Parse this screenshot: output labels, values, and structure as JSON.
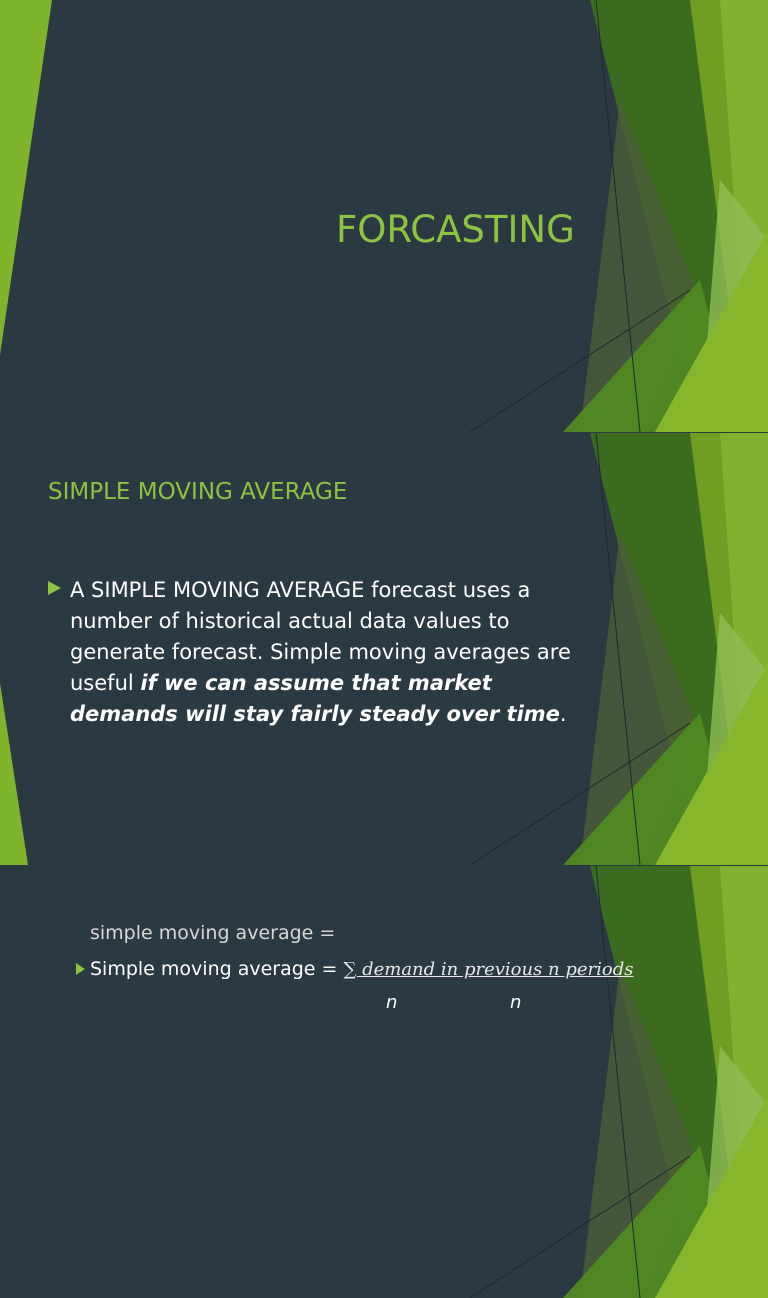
{
  "slides": [
    {
      "title": "FORCASTING"
    },
    {
      "heading": "SIMPLE MOVING AVERAGE",
      "bullet_plain": "A SIMPLE MOVING AVERAGE forecast uses a number of historical actual data values to generate forecast. Simple moving averages are useful ",
      "bullet_emphasis": "if we can assume that market demands will stay fairly steady over time",
      "bullet_end": "."
    },
    {
      "formula_label": "Simple moving average",
      "formula_label_overlap": "simple moving average =",
      "equals": " = ",
      "formula_numerator": "∑ demand in previous n periods",
      "denominator_1": "n",
      "denominator_2": "n"
    }
  ],
  "colors": {
    "background": "#2b3a42",
    "accent": "#8dc43f",
    "text": "#ffffff"
  }
}
